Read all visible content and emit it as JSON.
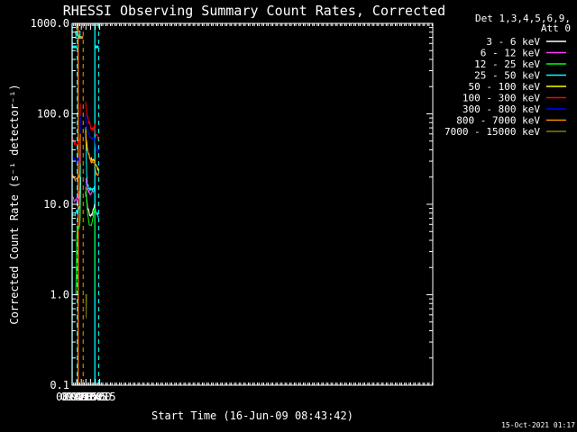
{
  "chart_data": {
    "type": "line",
    "title": "RHESSI Observing Summary Count Rates, Corrected",
    "xlabel": "Start Time (16-Jun-09 08:43:42)",
    "ylabel": "Corrected Count Rate (s⁻¹ detector⁻¹)",
    "yscale": "log",
    "ylim": [
      0.1,
      1000
    ],
    "xlim_min": [
      45,
      1222
    ],
    "xticks_min": [
      45,
      60,
      75,
      90,
      105,
      120,
      135
    ],
    "xtick_labels": [
      "08:45",
      "09:00",
      "09:15",
      "09:30",
      "09:45",
      "10:00",
      "10:15"
    ],
    "yticks": [
      0.1,
      1,
      10,
      100,
      1000
    ],
    "ytick_labels": [
      "0.1",
      "1.0",
      "10.0",
      "100.0",
      "1000.0"
    ],
    "legend_title": [
      "Det 1,3,4,5,6,9,",
      "Att 0"
    ],
    "legend_position": "top-right",
    "series": [
      {
        "name": "3 - 6 keV",
        "color": "#ffffff",
        "segments": [
          {
            "x": [
              61,
              66,
              70,
              71,
              73
            ],
            "y": [
              null,
              null,
              6,
              8,
              20
            ]
          },
          {
            "x": [
              89,
              90,
              93,
              96,
              100,
              104,
              108,
              112,
              116,
              118
            ],
            "y": [
              14,
              13,
              11,
              9,
              8.2,
              7.6,
              7.6,
              8.2,
              9.5,
              10
            ]
          }
        ]
      },
      {
        "name": "6 - 12 keV",
        "color": "#ff40ff",
        "segments": [
          {
            "x": [
              45,
              52,
              58,
              64,
              66,
              68,
              70,
              71,
              72
            ],
            "y": [
              11.5,
              11.2,
              11,
              11.3,
              11.6,
              12.2,
              13.5,
              22,
              45
            ]
          },
          {
            "x": [
              89,
              91,
              94,
              98,
              102,
              106,
              110,
              114,
              118
            ],
            "y": [
              20,
              17.5,
              15,
              13.8,
              13.2,
              13,
              13.5,
              14.2,
              15
            ]
          }
        ]
      },
      {
        "name": "12 - 25 keV",
        "color": "#00ff00",
        "segments": [
          {
            "x": [
              45,
              56,
              57,
              58,
              60,
              62,
              64,
              66,
              68,
              70,
              71,
              72
            ],
            "y": [
              1,
              1,
              1,
              1.5,
              4,
              5.2,
              5.3,
              5.4,
              5.6,
              6,
              9,
              20
            ]
          },
          {
            "x": [
              89,
              90,
              92,
              95,
              99,
              103,
              107,
              111,
              114,
              117,
              118,
              119,
              120,
              121,
              122
            ],
            "y": [
              16,
              14,
              11,
              8,
              6.5,
              6,
              6,
              6.4,
              7.4,
              8.4,
              9,
              9,
              1,
              1,
              1
            ]
          }
        ]
      },
      {
        "name": "25 - 50 keV",
        "color": "#00ffff",
        "segments": [
          {
            "x": [
              45,
              50,
              55,
              60,
              64,
              66,
              68,
              70,
              71,
              72
            ],
            "y": [
              7.2,
              7.5,
              7.8,
              8.2,
              8.3,
              8.6,
              8.8,
              9.4,
              14,
              28
            ]
          },
          {
            "x": [
              89,
              90,
              91,
              92,
              93,
              94,
              95,
              97,
              100,
              104,
              108,
              112,
              116,
              118,
              119,
              120,
              122,
              126,
              130,
              131
            ],
            "y": [
              75,
              50,
              35,
              26,
              21,
              18.5,
              17,
              16,
              15.5,
              15.2,
              15,
              15,
              15.3,
              15.5,
              12,
              9,
              8.4,
              8,
              7.6,
              7.4
            ]
          }
        ]
      },
      {
        "name": "50 - 100 keV",
        "color": "#ffff00",
        "segments": [
          {
            "x": [
              89,
              91,
              94,
              98,
              102,
              106,
              110,
              114,
              118,
              119,
              120,
              124,
              128,
              131
            ],
            "y": [
              70,
              55,
              43,
              36,
              33,
              31.5,
              30.5,
              30,
              30,
              30,
              28,
              26,
              24.5,
              23.5
            ]
          }
        ]
      },
      {
        "name": "100 - 300 keV",
        "color": "#ff0000",
        "segments": [
          {
            "x": [
              45,
              50,
              55,
              60,
              64,
              66,
              68,
              70,
              71,
              72
            ],
            "y": [
              54,
              50,
              47,
              45,
              46,
              48,
              50,
              52,
              70,
              130
            ]
          },
          {
            "x": [
              89,
              91,
              94,
              98,
              102,
              106,
              110,
              114,
              118,
              119,
              120,
              122,
              126,
              130,
              131
            ],
            "y": [
              135,
              118,
              100,
              87,
              78,
              72,
              69,
              68,
              72,
              76,
              64,
              60,
              57,
              55,
              55
            ]
          }
        ]
      },
      {
        "name": "300 - 800 keV",
        "color": "#0000ff",
        "segments": [
          {
            "x": [
              45,
              50,
              55,
              60,
              64,
              66,
              68,
              70,
              71,
              72
            ],
            "y": [
              35,
              33,
              32,
              30,
              31,
              31.5,
              32,
              34,
              50,
              95
            ]
          },
          {
            "x": [
              89,
              91,
              94,
              98,
              102,
              106,
              110,
              114,
              118,
              119,
              120,
              122,
              126,
              130,
              131
            ],
            "y": [
              95,
              82,
              70,
              62,
              56,
              53,
              52,
              52,
              55,
              56,
              47,
              43,
              40.5,
              39,
              38.5
            ]
          }
        ]
      },
      {
        "name": "800 - 7000 keV",
        "color": "#ff8c00",
        "segments": [
          {
            "x": [
              45,
              50,
              55,
              60,
              64,
              66,
              68,
              70,
              71,
              72
            ],
            "y": [
              21,
              20,
              19,
              18.5,
              19.5,
              20,
              20.5,
              22,
              32,
              60
            ]
          },
          {
            "x": [
              89,
              91,
              94,
              98,
              102,
              106,
              110,
              114,
              118,
              119,
              120,
              122,
              126,
              130,
              131
            ],
            "y": [
              60,
              47,
              40,
              35,
              32,
              30,
              29.5,
              29.5,
              31,
              32,
              25,
              23,
              22,
              21.5,
              21
            ]
          }
        ]
      },
      {
        "name": "7000 - 15000 keV",
        "color": "#808000",
        "segments": [
          {
            "x": [
              88,
              90,
              91,
              92,
              94
            ],
            "y": [
              1,
              1,
              0.55,
              1,
              1
            ]
          }
        ]
      }
    ]
  },
  "flags": {
    "saa": {
      "color": "#00ffff",
      "lines_solid_min": [
        45.1,
        119.2
      ],
      "lines_dashed_min": [
        61.5,
        132
      ],
      "bars": [
        [
          45.5,
          61
        ],
        [
          119.8,
          131.6
        ]
      ],
      "level": 550
    },
    "night": {
      "color": "#ff8c00",
      "lines_solid_min": [
        64.5
      ],
      "lines_dashed_min": [
        81
      ],
      "bars": [
        [
          64.8,
          81
        ]
      ],
      "level": 700
    },
    "labels": [
      {
        "text": "S",
        "x": 62.8,
        "color": "#ff8c00"
      },
      {
        "text": "N",
        "x": 64.2,
        "color": "#00ffff"
      }
    ]
  },
  "footer_date": "15-Oct-2021 01:17"
}
